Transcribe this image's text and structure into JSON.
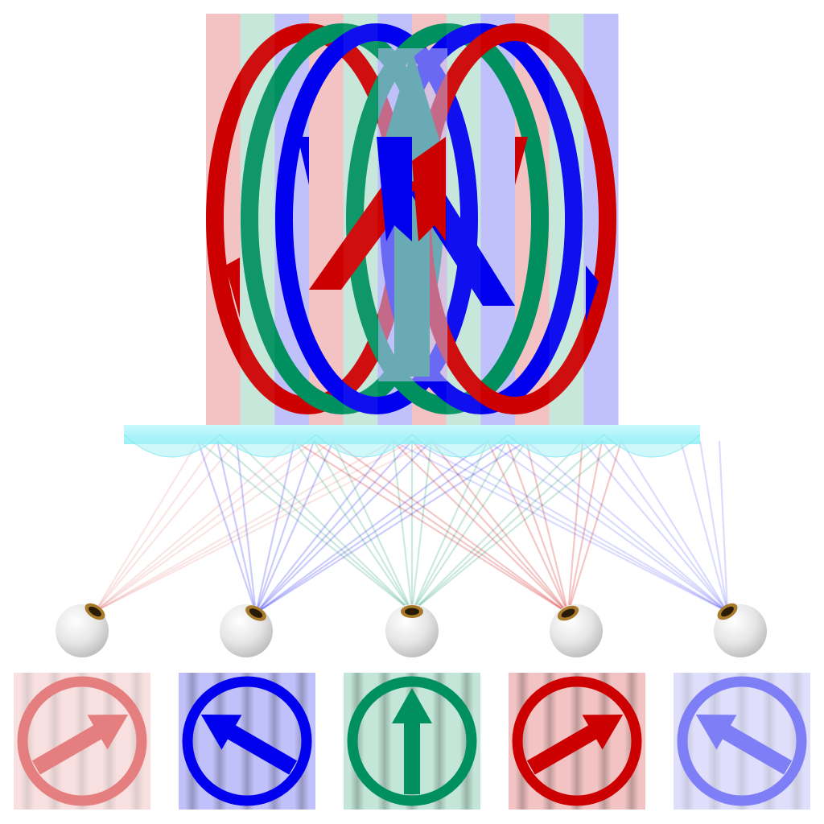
{
  "colors": {
    "red": "#cc0000",
    "green": "#009060",
    "blue": "#0000ee",
    "red_tint": "#f3c3c3",
    "green_tint": "#c3e6d8",
    "blue_tint": "#c0c0fa",
    "lens": "#a8f2f8",
    "eye_pupil": "#2a1a08",
    "eye_iris": "#a87b2a"
  },
  "interlaced_image": {
    "strip_sequence": [
      "red",
      "green",
      "blue",
      "red",
      "green",
      "blue",
      "red",
      "green",
      "blue",
      "red",
      "green",
      "blue"
    ]
  },
  "lenticular_lens_sheet": {
    "lens_count": 12
  },
  "views": [
    {
      "name": "view-1",
      "color": "red",
      "opacity": 0.5,
      "arrow_icon": "arrow-up-right-icon",
      "eye_sightline_color": "red"
    },
    {
      "name": "view-2",
      "color": "blue",
      "opacity": 1.0,
      "arrow_icon": "arrow-up-left-icon",
      "eye_sightline_color": "blue"
    },
    {
      "name": "view-3",
      "color": "green",
      "opacity": 1.0,
      "arrow_icon": "arrow-up-icon",
      "eye_sightline_color": "green"
    },
    {
      "name": "view-4",
      "color": "red",
      "opacity": 1.0,
      "arrow_icon": "arrow-up-right-icon",
      "eye_sightline_color": "red"
    },
    {
      "name": "view-5",
      "color": "blue",
      "opacity": 0.5,
      "arrow_icon": "arrow-up-left-icon",
      "eye_sightline_color": "blue"
    }
  ]
}
